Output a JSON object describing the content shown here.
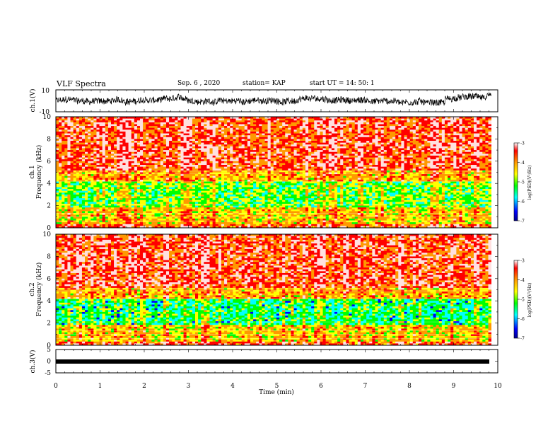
{
  "header": {
    "title": "VLF  Spectra",
    "date": "Sep. 6 , 2020",
    "station": "station= KAP",
    "start": "start  UT  =   14: 50: 1"
  },
  "chart_data": [
    {
      "type": "line",
      "panel": "ch1-waveform",
      "ylabel": "ch.1(V)",
      "xlim": [
        0,
        10
      ],
      "ylim": [
        -10,
        10
      ],
      "yticks": [
        "10",
        "-10"
      ],
      "note": "noisy voltage trace around 0 V, ranging roughly -5 to +8 V over 0-9.8 min"
    },
    {
      "type": "heatmap",
      "panel": "ch1-spectrogram",
      "ylabel_top": "ch.1",
      "ylabel": "Frequency  (kHz)",
      "xlim": [
        0,
        10
      ],
      "ylim": [
        0,
        10
      ],
      "yticks": [
        "0",
        "2",
        "4",
        "6",
        "8",
        "10"
      ],
      "data_extent_min": 9.85,
      "colorbar": {
        "label": "log(PSD)(V²/Hz)",
        "range": [
          -7,
          -3
        ],
        "ticks": [
          "-3",
          "-4",
          "-5",
          "-6",
          "-7"
        ]
      },
      "note": "high power (red/yellow) above ~5 kHz, lower power (green/cyan) between 2 and 4 kHz, red band near 0-1.5 kHz"
    },
    {
      "type": "heatmap",
      "panel": "ch2-spectrogram",
      "ylabel_top": "ch.2",
      "ylabel": "Frequency  (kHz)",
      "xlim": [
        0,
        10
      ],
      "ylim": [
        0,
        10
      ],
      "yticks": [
        "0",
        "2",
        "4",
        "6",
        "8",
        "10"
      ],
      "data_extent_min": 9.85,
      "colorbar": {
        "label": "log(PSD)(V²/Hz)",
        "range": [
          -7,
          -3
        ],
        "ticks": [
          "-3",
          "-4",
          "-5",
          "-6",
          "-7"
        ]
      },
      "note": "similar to ch.1 with stronger cyan band around 2-3 kHz"
    },
    {
      "type": "line",
      "panel": "ch3-waveform",
      "ylabel": "ch.3(V)",
      "xlim": [
        0,
        10
      ],
      "ylim": [
        -5,
        5
      ],
      "yticks": [
        "5",
        "0",
        "-5"
      ],
      "xticks": [
        "0",
        "1",
        "2",
        "3",
        "4",
        "5",
        "6",
        "7",
        "8",
        "9",
        "10"
      ],
      "xlabel": "Time  (min)",
      "note": "flat thick trace at about -0.5 V from 0 to 9.8 min"
    }
  ],
  "colors": {
    "scale": [
      "#00008b",
      "#0000ff",
      "#00ffff",
      "#00ff00",
      "#ffff00",
      "#ff9900",
      "#ff0000",
      "#ffffff"
    ]
  }
}
